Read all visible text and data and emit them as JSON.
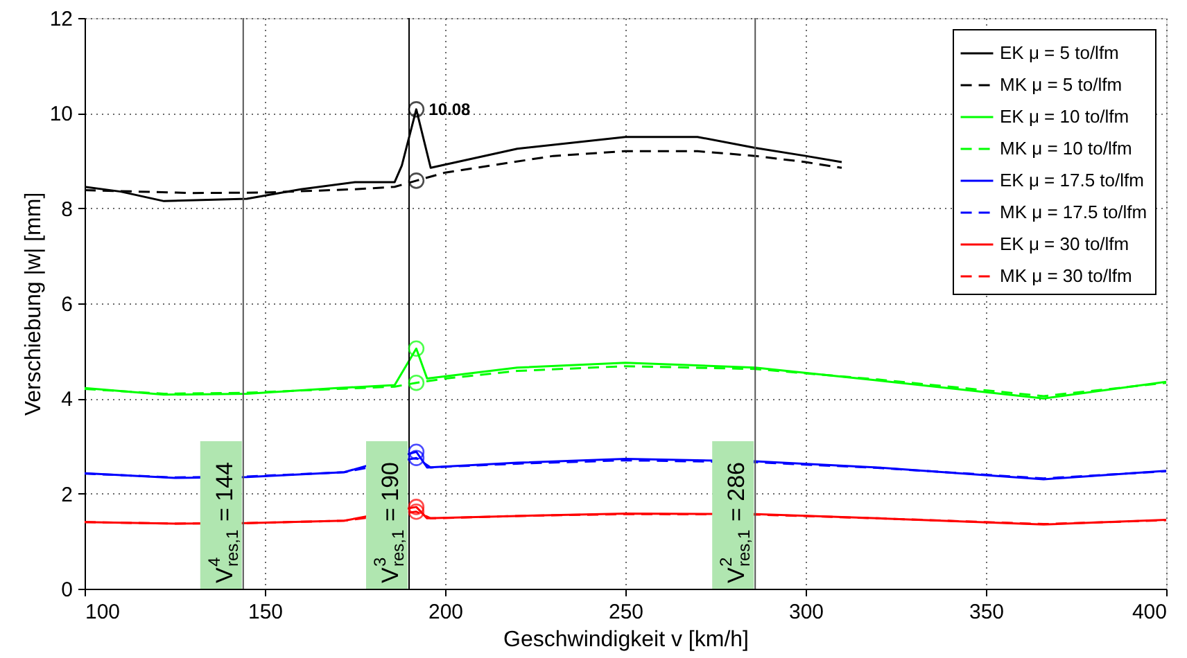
{
  "chart_data": {
    "type": "line",
    "xlabel": "Geschwindigkeit v [km/h]",
    "ylabel": "Verschiebung |w| [mm]",
    "xlim": [
      100,
      400
    ],
    "ylim": [
      0,
      12
    ],
    "xticks": [
      100,
      150,
      200,
      250,
      300,
      350,
      400
    ],
    "yticks": [
      0,
      2,
      4,
      6,
      8,
      10,
      12
    ],
    "grid": true,
    "legend": "top right",
    "marker": "none",
    "series": [
      {
        "name": "EK μ = 5 to/lfm",
        "color": "#000000",
        "line_style": "solid",
        "x": [
          100,
          110,
          122,
          145,
          160,
          175,
          186,
          188,
          192,
          196,
          220,
          250,
          270,
          286,
          300,
          310
        ],
        "values": [
          8.45,
          8.35,
          8.15,
          8.2,
          8.4,
          8.55,
          8.55,
          8.9,
          10.08,
          8.85,
          9.25,
          9.5,
          9.5,
          9.27,
          9.1,
          8.97
        ]
      },
      {
        "name": "MK μ = 5 to/lfm",
        "color": "#000000",
        "line_style": "dashed",
        "x": [
          100,
          130,
          150,
          175,
          186,
          192,
          200,
          230,
          250,
          270,
          286,
          300,
          310
        ],
        "values": [
          8.38,
          8.32,
          8.33,
          8.4,
          8.45,
          8.58,
          8.75,
          9.1,
          9.2,
          9.2,
          9.1,
          8.97,
          8.85
        ]
      },
      {
        "name": "EK μ = 10 to/lfm",
        "color": "#00ff00",
        "line_style": "solid",
        "x": [
          100,
          122,
          145,
          170,
          186,
          192,
          195,
          220,
          250,
          286,
          320,
          366,
          400
        ],
        "values": [
          4.22,
          4.08,
          4.1,
          4.22,
          4.28,
          5.05,
          4.42,
          4.65,
          4.75,
          4.65,
          4.38,
          4.0,
          4.35
        ]
      },
      {
        "name": "MK μ = 10 to/lfm",
        "color": "#00ff00",
        "line_style": "dashed",
        "x": [
          100,
          122,
          145,
          170,
          186,
          192,
          200,
          220,
          250,
          286,
          320,
          366,
          400
        ],
        "values": [
          4.2,
          4.1,
          4.12,
          4.2,
          4.25,
          4.33,
          4.42,
          4.58,
          4.68,
          4.62,
          4.4,
          4.05,
          4.33
        ]
      },
      {
        "name": "EK μ = 17.5 to/lfm",
        "color": "#0000ff",
        "line_style": "solid",
        "x": [
          100,
          125,
          145,
          172,
          192,
          195,
          220,
          250,
          286,
          320,
          366,
          400
        ],
        "values": [
          2.43,
          2.33,
          2.35,
          2.45,
          2.88,
          2.55,
          2.65,
          2.73,
          2.68,
          2.55,
          2.3,
          2.48
        ]
      },
      {
        "name": "MK μ = 17.5 to/lfm",
        "color": "#0000ff",
        "line_style": "dashed",
        "x": [
          100,
          125,
          145,
          172,
          192,
          196,
          220,
          250,
          286,
          320,
          366,
          400
        ],
        "values": [
          2.42,
          2.34,
          2.36,
          2.45,
          2.75,
          2.55,
          2.63,
          2.7,
          2.66,
          2.54,
          2.32,
          2.47
        ]
      },
      {
        "name": "EK μ = 30 to/lfm",
        "color": "#ff0000",
        "line_style": "solid",
        "x": [
          100,
          125,
          145,
          172,
          192,
          195,
          220,
          250,
          286,
          320,
          366,
          400
        ],
        "values": [
          1.4,
          1.37,
          1.38,
          1.43,
          1.72,
          1.48,
          1.53,
          1.58,
          1.57,
          1.48,
          1.35,
          1.45
        ]
      },
      {
        "name": "MK μ = 30 to/lfm",
        "color": "#ff0000",
        "line_style": "dashed",
        "x": [
          100,
          125,
          145,
          172,
          192,
          196,
          220,
          250,
          286,
          320,
          366,
          400
        ],
        "values": [
          1.4,
          1.37,
          1.38,
          1.43,
          1.62,
          1.48,
          1.53,
          1.57,
          1.56,
          1.48,
          1.36,
          1.44
        ]
      },
      {
        "type": "scatter",
        "marker": "circle",
        "x": [
          192,
          192,
          192,
          192,
          192,
          192,
          192,
          192
        ],
        "values": [
          10.08,
          8.58,
          5.05,
          4.33,
          2.88,
          2.75,
          1.72,
          1.62
        ],
        "colors": [
          "#000000",
          "#000000",
          "#00ff00",
          "#00ff00",
          "#0000ff",
          "#0000ff",
          "#ff0000",
          "#ff0000"
        ]
      }
    ],
    "annotations": [
      {
        "text": "10.08",
        "x": 192,
        "y": 10.08
      }
    ],
    "ref_lines": [
      {
        "axis": "x",
        "value": 144,
        "label": "V$^{4}$$_{res,1}$ = 144",
        "color": "#555555"
      },
      {
        "axis": "x",
        "value": 190,
        "label": "V$^{3}$$_{res,1}$ = 190",
        "color": "#000000"
      },
      {
        "axis": "x",
        "value": 286,
        "label": "V$^{2}$$_{res,1}$ = 286",
        "color": "#555555"
      }
    ]
  }
}
